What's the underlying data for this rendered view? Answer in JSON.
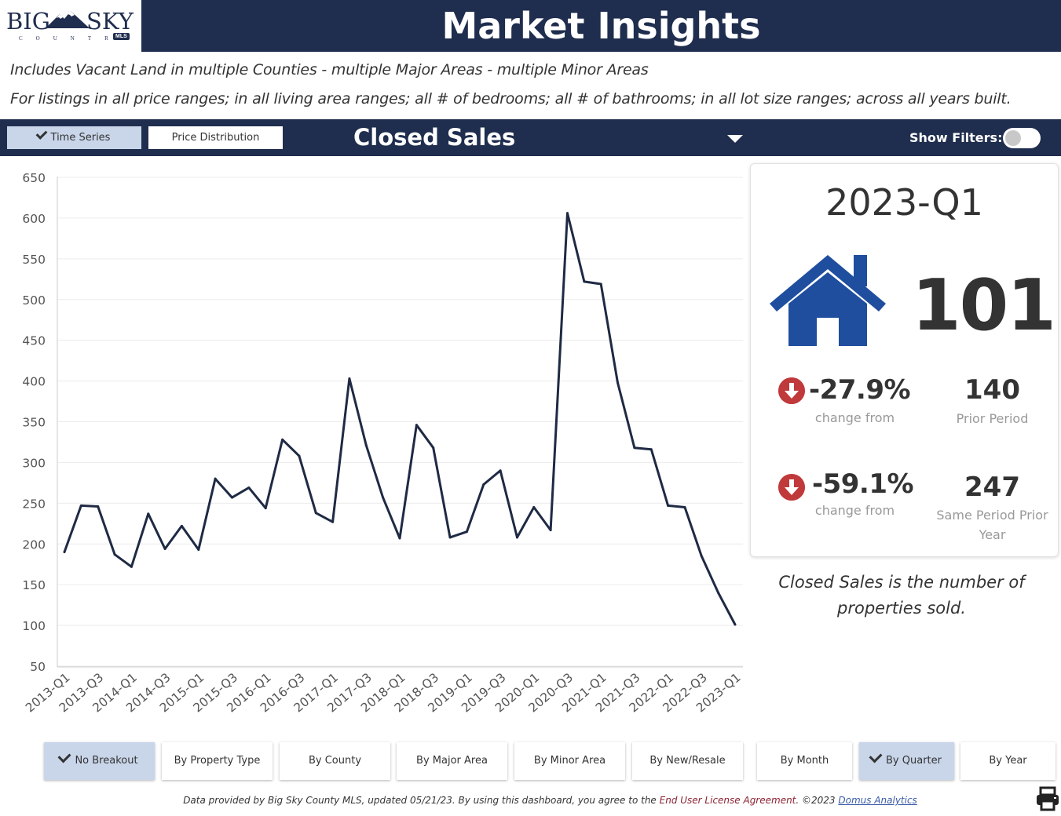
{
  "header": {
    "logo_top_left": "BIG",
    "logo_top_right": "SKY",
    "logo_sub": "COUNTRY",
    "logo_badge": "MLS",
    "title": "Market Insights"
  },
  "description": {
    "line1": "Includes Vacant Land in multiple Counties - multiple Major Areas - multiple Minor Areas",
    "line2": "For listings in all price ranges; in all living area ranges; all # of bedrooms; all # of bathrooms; in all lot size ranges; across all years built."
  },
  "toolbar": {
    "time_series_label": "Time Series",
    "price_distribution_label": "Price Distribution",
    "metric_selected": "Closed Sales",
    "show_filters_label": "Show Filters:",
    "show_filters_on": false
  },
  "chart_data": {
    "type": "line",
    "title": "",
    "xlabel": "",
    "ylabel": "",
    "ylim": [
      50,
      650
    ],
    "yticks": [
      50,
      100,
      150,
      200,
      250,
      300,
      350,
      400,
      450,
      500,
      550,
      600,
      650
    ],
    "grid": true,
    "x": [
      "2013-Q1",
      "2013-Q2",
      "2013-Q3",
      "2013-Q4",
      "2014-Q1",
      "2014-Q2",
      "2014-Q3",
      "2014-Q4",
      "2015-Q1",
      "2015-Q2",
      "2015-Q3",
      "2015-Q4",
      "2016-Q1",
      "2016-Q2",
      "2016-Q3",
      "2016-Q4",
      "2017-Q1",
      "2017-Q2",
      "2017-Q3",
      "2017-Q4",
      "2018-Q1",
      "2018-Q2",
      "2018-Q3",
      "2018-Q4",
      "2019-Q1",
      "2019-Q2",
      "2019-Q3",
      "2019-Q4",
      "2020-Q1",
      "2020-Q2",
      "2020-Q3",
      "2020-Q4",
      "2021-Q1",
      "2021-Q2",
      "2021-Q3",
      "2021-Q4",
      "2022-Q1",
      "2022-Q2",
      "2022-Q3",
      "2022-Q4",
      "2023-Q1"
    ],
    "xtick_labels": [
      "2013-Q1",
      "2013-Q3",
      "2014-Q1",
      "2014-Q3",
      "2015-Q1",
      "2015-Q3",
      "2016-Q1",
      "2016-Q3",
      "2017-Q1",
      "2017-Q3",
      "2018-Q1",
      "2018-Q3",
      "2019-Q1",
      "2019-Q3",
      "2020-Q1",
      "2020-Q3",
      "2021-Q1",
      "2021-Q3",
      "2022-Q1",
      "2022-Q3",
      "2023-Q1"
    ],
    "series": [
      {
        "color": "#1f2a44",
        "values": [
          190,
          247,
          246,
          187,
          172,
          237,
          194,
          222,
          193,
          280,
          257,
          269,
          244,
          328,
          308,
          238,
          227,
          403,
          321,
          257,
          207,
          346,
          318,
          208,
          215,
          273,
          290,
          208,
          245,
          217,
          606,
          522,
          519,
          398,
          318,
          316,
          247,
          245,
          185,
          140,
          101
        ]
      }
    ]
  },
  "kpi": {
    "period": "2023-Q1",
    "value": "101",
    "icon": "house-icon",
    "change1_pct": "-27.9%",
    "change1_label": "change from",
    "prior_value": "140",
    "prior_label": "Prior Period",
    "change2_pct": "-59.1%",
    "change2_label": "change from",
    "same_value": "247",
    "same_label": "Same Period Prior Year",
    "down_color": "#c0393b",
    "icon_color": "#1f4e9e"
  },
  "definition": "Closed Sales is the number of properties sold.",
  "breakouts": {
    "no_breakout": "No Breakout",
    "by_property_type": "By Property Type",
    "by_county": "By County",
    "by_major_area": "By Major Area",
    "by_minor_area": "By Minor Area",
    "by_new_resale": "By New/Resale"
  },
  "periods": {
    "by_month": "By Month",
    "by_quarter": "By Quarter",
    "by_year": "By Year"
  },
  "footer": {
    "text1": "Data provided by Big Sky County MLS, updated 05/21/23.  By using this dashboard, you agree to the ",
    "eula": "End User License Agreement",
    "text2": ".  ©2023 ",
    "domus": "Domus Analytics"
  }
}
